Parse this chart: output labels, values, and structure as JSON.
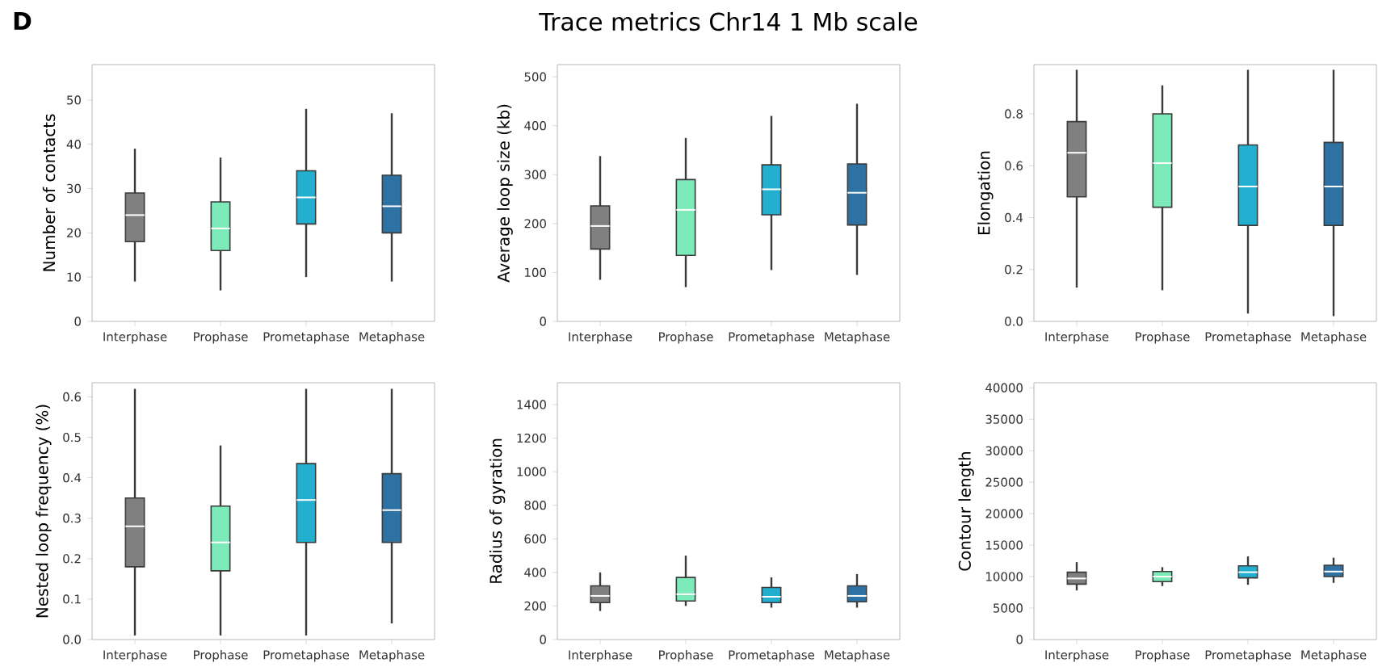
{
  "chart_data": [
    {
      "type": "box",
      "annotations": [
        "D"
      ],
      "categories": [
        "Interphase",
        "Prophase",
        "Prometaphase",
        "Metaphase"
      ],
      "colors": [
        "#808080",
        "#7debb9",
        "#23afd0",
        "#2e72a4"
      ],
      "ylabel": "Number of contacts",
      "ylim": [
        0,
        58
      ],
      "yticks": [
        0,
        10,
        20,
        30,
        40,
        50
      ],
      "boxes": [
        {
          "low": 9,
          "q1": 18,
          "median": 24,
          "q3": 29,
          "high": 39
        },
        {
          "low": 7,
          "q1": 16,
          "median": 21,
          "q3": 27,
          "high": 37
        },
        {
          "low": 10,
          "q1": 22,
          "median": 28,
          "q3": 34,
          "high": 48
        },
        {
          "low": 9,
          "q1": 20,
          "median": 26,
          "q3": 33,
          "high": 47
        }
      ]
    },
    {
      "type": "box",
      "title": "Trace metrics Chr14 1 Mb scale",
      "categories": [
        "Interphase",
        "Prophase",
        "Prometaphase",
        "Metaphase"
      ],
      "colors": [
        "#808080",
        "#7debb9",
        "#23afd0",
        "#2e72a4"
      ],
      "ylabel": "Average loop size (kb)",
      "ylim": [
        0,
        525
      ],
      "yticks": [
        0,
        100,
        200,
        300,
        400,
        500
      ],
      "boxes": [
        {
          "low": 85,
          "q1": 148,
          "median": 195,
          "q3": 236,
          "high": 338
        },
        {
          "low": 70,
          "q1": 135,
          "median": 228,
          "q3": 290,
          "high": 375
        },
        {
          "low": 105,
          "q1": 218,
          "median": 270,
          "q3": 320,
          "high": 420
        },
        {
          "low": 95,
          "q1": 197,
          "median": 263,
          "q3": 322,
          "high": 445
        }
      ]
    },
    {
      "type": "box",
      "categories": [
        "Interphase",
        "Prophase",
        "Prometaphase",
        "Metaphase"
      ],
      "colors": [
        "#808080",
        "#7debb9",
        "#23afd0",
        "#2e72a4"
      ],
      "ylabel": "Elongation",
      "ylim": [
        0,
        0.99
      ],
      "yticks": [
        {
          "value": 0,
          "label": "0.0"
        },
        {
          "value": 0.2,
          "label": "0.2"
        },
        {
          "value": 0.4,
          "label": "0.4"
        },
        {
          "value": 0.6,
          "label": "0.6"
        },
        {
          "value": 0.8,
          "label": "0.8"
        }
      ],
      "boxes": [
        {
          "low": 0.13,
          "q1": 0.48,
          "median": 0.65,
          "q3": 0.77,
          "high": 0.97
        },
        {
          "low": 0.12,
          "q1": 0.44,
          "median": 0.61,
          "q3": 0.8,
          "high": 0.91
        },
        {
          "low": 0.03,
          "q1": 0.37,
          "median": 0.52,
          "q3": 0.68,
          "high": 0.97
        },
        {
          "low": 0.02,
          "q1": 0.37,
          "median": 0.52,
          "q3": 0.69,
          "high": 0.97
        }
      ]
    },
    {
      "type": "box",
      "categories": [
        "Interphase",
        "Prophase",
        "Prometaphase",
        "Metaphase"
      ],
      "colors": [
        "#808080",
        "#7debb9",
        "#23afd0",
        "#2e72a4"
      ],
      "ylabel": "Nested loop frequency (%)",
      "ylim": [
        0,
        0.635
      ],
      "yticks": [
        {
          "value": 0,
          "label": "0.0"
        },
        {
          "value": 0.1,
          "label": "0.1"
        },
        {
          "value": 0.2,
          "label": "0.2"
        },
        {
          "value": 0.3,
          "label": "0.3"
        },
        {
          "value": 0.4,
          "label": "0.4"
        },
        {
          "value": 0.5,
          "label": "0.5"
        },
        {
          "value": 0.6,
          "label": "0.6"
        }
      ],
      "boxes": [
        {
          "low": 0.01,
          "q1": 0.18,
          "median": 0.28,
          "q3": 0.35,
          "high": 0.62
        },
        {
          "low": 0.01,
          "q1": 0.17,
          "median": 0.24,
          "q3": 0.33,
          "high": 0.48
        },
        {
          "low": 0.01,
          "q1": 0.24,
          "median": 0.345,
          "q3": 0.435,
          "high": 0.62
        },
        {
          "low": 0.04,
          "q1": 0.24,
          "median": 0.32,
          "q3": 0.41,
          "high": 0.62
        }
      ]
    },
    {
      "type": "box",
      "categories": [
        "Interphase",
        "Prophase",
        "Prometaphase",
        "Metaphase"
      ],
      "colors": [
        "#808080",
        "#7debb9",
        "#23afd0",
        "#2e72a4"
      ],
      "ylabel": "Radius of gyration",
      "ylim": [
        0,
        1530
      ],
      "yticks": [
        0,
        200,
        400,
        600,
        800,
        1000,
        1200,
        1400
      ],
      "boxes": [
        {
          "low": 170,
          "q1": 220,
          "median": 260,
          "q3": 320,
          "high": 400
        },
        {
          "low": 200,
          "q1": 230,
          "median": 270,
          "q3": 370,
          "high": 500
        },
        {
          "low": 190,
          "q1": 220,
          "median": 255,
          "q3": 310,
          "high": 370
        },
        {
          "low": 190,
          "q1": 225,
          "median": 260,
          "q3": 320,
          "high": 390
        }
      ]
    },
    {
      "type": "box",
      "categories": [
        "Interphase",
        "Prophase",
        "Prometaphase",
        "Metaphase"
      ],
      "colors": [
        "#808080",
        "#7debb9",
        "#23afd0",
        "#2e72a4"
      ],
      "ylabel": "Contour length",
      "ylim": [
        0,
        40800
      ],
      "yticks": [
        0,
        5000,
        10000,
        15000,
        20000,
        25000,
        30000,
        35000,
        40000
      ],
      "boxes": [
        {
          "low": 7800,
          "q1": 8800,
          "median": 9700,
          "q3": 10700,
          "high": 12300
        },
        {
          "low": 8500,
          "q1": 9200,
          "median": 10000,
          "q3": 10800,
          "high": 11500
        },
        {
          "low": 8700,
          "q1": 9800,
          "median": 10700,
          "q3": 11700,
          "high": 13200
        },
        {
          "low": 9000,
          "q1": 10000,
          "median": 10800,
          "q3": 11800,
          "high": 13000
        }
      ]
    }
  ]
}
